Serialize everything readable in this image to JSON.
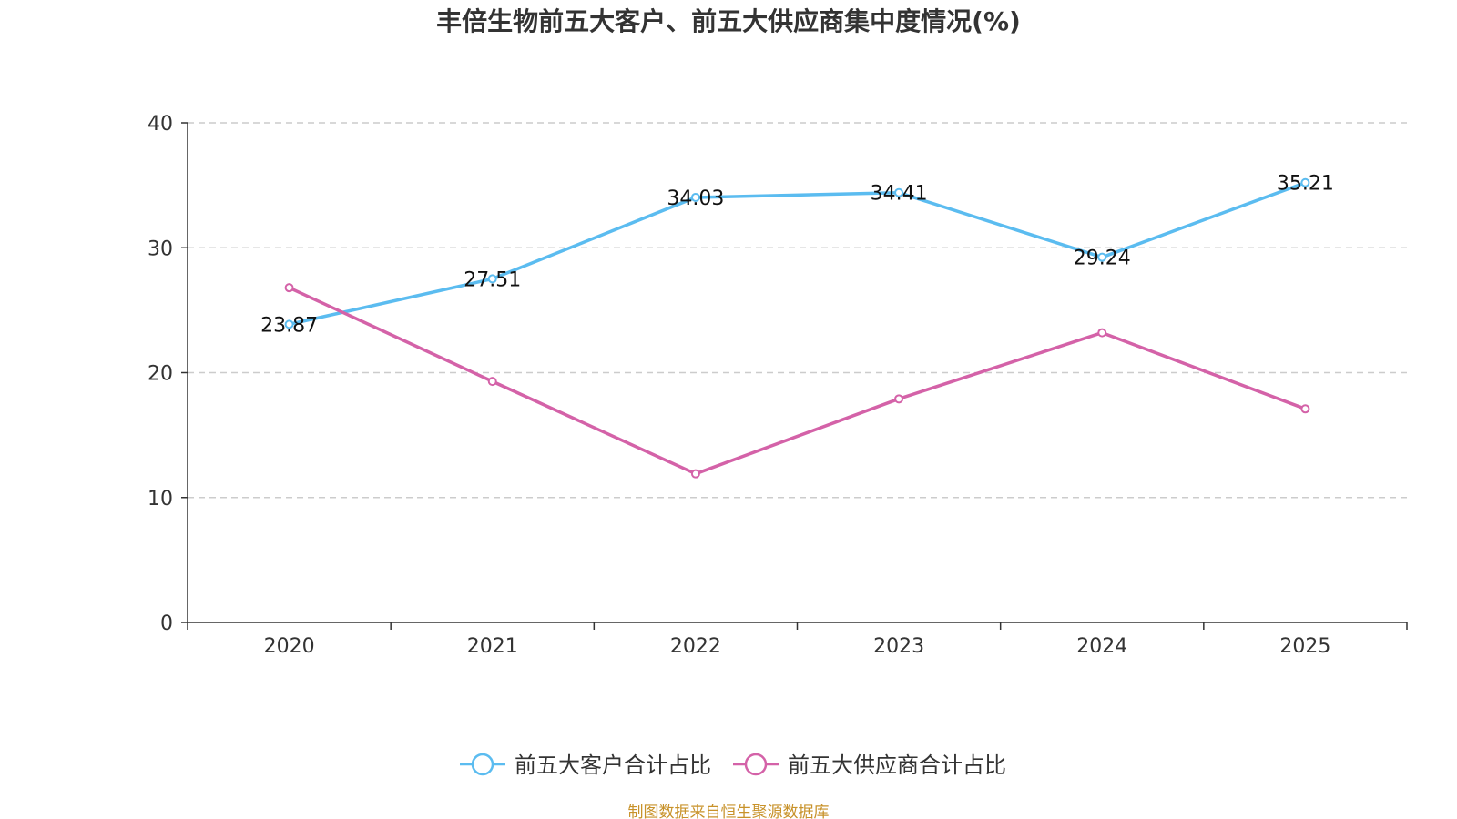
{
  "chart_data": {
    "type": "line",
    "title": "丰倍生物前五大客户、前五大供应商集中度情况(%)",
    "categories": [
      "2020",
      "2021",
      "2022",
      "2023",
      "2024",
      "2025"
    ],
    "xlabel": "",
    "ylabel": "",
    "ylim": [
      0,
      40
    ],
    "yticks": [
      0,
      10,
      20,
      30,
      40
    ],
    "grid": true,
    "legend_position": "bottom",
    "series": [
      {
        "name": "前五大客户合计占比",
        "color": "#5bbcf0",
        "values": [
          23.87,
          27.51,
          34.03,
          34.41,
          29.24,
          35.21
        ],
        "labels": [
          "23.87",
          "27.51",
          "34.03",
          "34.41",
          "29.24",
          "35.21"
        ]
      },
      {
        "name": "前五大供应商合计占比",
        "color": "#d462a8",
        "values": [
          26.8,
          19.3,
          11.9,
          17.9,
          23.2,
          17.1
        ],
        "labels": []
      }
    ]
  },
  "source": "制图数据来自恒生聚源数据库"
}
